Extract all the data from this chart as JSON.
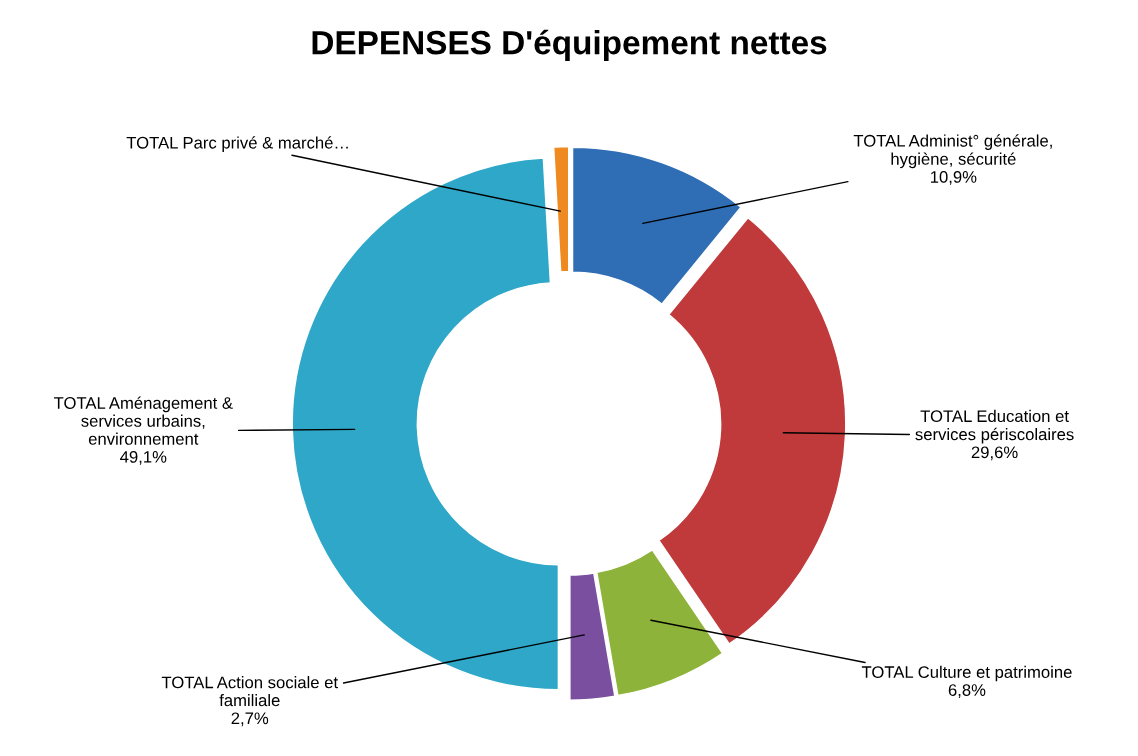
{
  "chart_data": {
    "type": "donut",
    "title": "DEPENSES D'équipement nettes",
    "categories": [
      "TOTAL Administ° générale,\nhygiène, sécurité",
      "TOTAL Education et\nservices périscolaires",
      "TOTAL Culture et patrimoine",
      "TOTAL Action sociale et\nfamiliale",
      "TOTAL Aménagement &\nservices urbains,\nenvironnement",
      "TOTAL Parc privé & marché…"
    ],
    "values": [
      10.9,
      29.6,
      6.8,
      2.7,
      49.1,
      0.9
    ],
    "value_labels": [
      "10,9%",
      "29,6%",
      "6,8%",
      "2,7%",
      "49,1%",
      null
    ],
    "colors": [
      "#2f6db5",
      "#c0393b",
      "#8db33a",
      "#7b4fa0",
      "#2fa7c8",
      "#ee8a1f"
    ],
    "legend": false
  }
}
